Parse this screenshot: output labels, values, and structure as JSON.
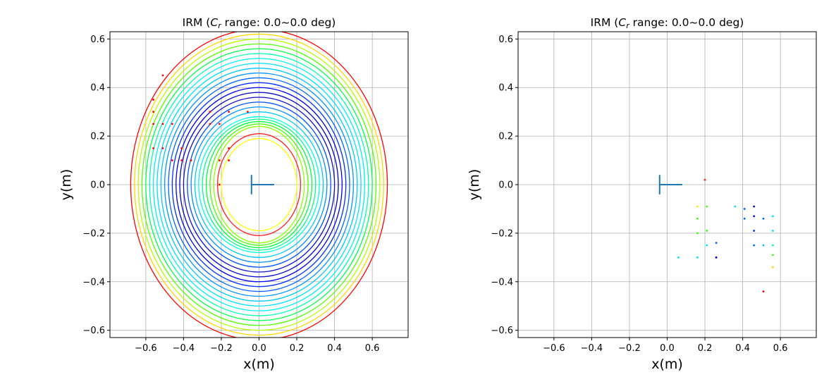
{
  "chart_data": [
    {
      "type": "scatter",
      "title": "IRM (C_r range: 0.0~0.0 deg)",
      "title_parts": {
        "prefix": "IRM (",
        "symbol": "C",
        "subscript": "r",
        "suffix": " range: 0.0~0.0 deg)"
      },
      "xlabel": "x(m)",
      "ylabel": "y(m)",
      "xlim": [
        -0.79,
        0.79
      ],
      "ylim": [
        -0.63,
        0.63
      ],
      "xticks": [
        -0.6,
        -0.4,
        -0.2,
        0.0,
        0.2,
        0.4,
        0.6
      ],
      "xtick_labels": [
        "−0.6",
        "−0.4",
        "−0.2",
        "0.0",
        "0.2",
        "0.4",
        "0.6"
      ],
      "yticks": [
        -0.6,
        -0.4,
        -0.2,
        0.0,
        0.2,
        0.4,
        0.6
      ],
      "ytick_labels": [
        "−0.6",
        "−0.4",
        "−0.2",
        "0.0",
        "0.2",
        "0.4",
        "0.6"
      ],
      "grid": true,
      "robot_marker": {
        "x": -0.04,
        "y": 0.0,
        "half_height": 0.04,
        "length": 0.12,
        "color": "#1f77b4"
      },
      "ellipses": [
        {
          "rx": 0.68,
          "ry": 0.64,
          "color": "#ff0000"
        },
        {
          "rx": 0.66,
          "ry": 0.62,
          "color": "#ffd700"
        },
        {
          "rx": 0.64,
          "ry": 0.6,
          "color": "#b4ff00"
        },
        {
          "rx": 0.62,
          "ry": 0.58,
          "color": "#55ff00"
        },
        {
          "rx": 0.6,
          "ry": 0.56,
          "color": "#00ff48"
        },
        {
          "rx": 0.58,
          "ry": 0.54,
          "color": "#00ffb0"
        },
        {
          "rx": 0.56,
          "ry": 0.52,
          "color": "#00f0ff"
        },
        {
          "rx": 0.54,
          "ry": 0.5,
          "color": "#00e0ff"
        },
        {
          "rx": 0.52,
          "ry": 0.48,
          "color": "#00c8ff"
        },
        {
          "rx": 0.5,
          "ry": 0.46,
          "color": "#0096ff"
        },
        {
          "rx": 0.48,
          "ry": 0.44,
          "color": "#0064ff"
        },
        {
          "rx": 0.46,
          "ry": 0.42,
          "color": "#0032ff"
        },
        {
          "rx": 0.44,
          "ry": 0.4,
          "color": "#0000f0"
        },
        {
          "rx": 0.42,
          "ry": 0.38,
          "color": "#0000c8"
        },
        {
          "rx": 0.4,
          "ry": 0.36,
          "color": "#1010d0"
        },
        {
          "rx": 0.38,
          "ry": 0.34,
          "color": "#0050ff"
        },
        {
          "rx": 0.36,
          "ry": 0.32,
          "color": "#0090ff"
        },
        {
          "rx": 0.34,
          "ry": 0.3,
          "color": "#00c8ff"
        },
        {
          "rx": 0.32,
          "ry": 0.28,
          "color": "#00ffe0"
        },
        {
          "rx": 0.3,
          "ry": 0.27,
          "color": "#00ff90"
        },
        {
          "rx": 0.28,
          "ry": 0.26,
          "color": "#00ff40"
        },
        {
          "rx": 0.26,
          "ry": 0.25,
          "color": "#40ff00"
        },
        {
          "rx": 0.24,
          "ry": 0.24,
          "color": "#90ff00"
        },
        {
          "rx": 0.22,
          "ry": 0.21,
          "color": "#ff2020"
        },
        {
          "rx": 0.2,
          "ry": 0.19,
          "color": "#ffff00"
        }
      ],
      "points": [
        {
          "x": -0.51,
          "y": 0.45,
          "color": "#ff0000"
        },
        {
          "x": -0.56,
          "y": 0.35,
          "color": "#ff0000"
        },
        {
          "x": -0.56,
          "y": 0.3,
          "color": "#ff0000"
        },
        {
          "x": -0.56,
          "y": 0.25,
          "color": "#ff0000"
        },
        {
          "x": -0.51,
          "y": 0.25,
          "color": "#ff0000"
        },
        {
          "x": -0.46,
          "y": 0.25,
          "color": "#ff0000"
        },
        {
          "x": -0.56,
          "y": 0.15,
          "color": "#ff0000"
        },
        {
          "x": -0.51,
          "y": 0.15,
          "color": "#ff0000"
        },
        {
          "x": -0.41,
          "y": 0.15,
          "color": "#ff0000"
        },
        {
          "x": -0.46,
          "y": 0.1,
          "color": "#ff0000"
        },
        {
          "x": -0.41,
          "y": 0.1,
          "color": "#ff0000"
        },
        {
          "x": -0.36,
          "y": 0.1,
          "color": "#ff0000"
        },
        {
          "x": -0.26,
          "y": 0.3,
          "color": "#ff0000"
        },
        {
          "x": -0.16,
          "y": 0.3,
          "color": "#ff0000"
        },
        {
          "x": -0.06,
          "y": 0.3,
          "color": "#ff0000"
        },
        {
          "x": -0.26,
          "y": 0.25,
          "color": "#ff0000"
        },
        {
          "x": -0.21,
          "y": 0.25,
          "color": "#ff0000"
        },
        {
          "x": -0.16,
          "y": 0.15,
          "color": "#ff0000"
        },
        {
          "x": -0.21,
          "y": 0.1,
          "color": "#ff0000"
        },
        {
          "x": -0.16,
          "y": 0.1,
          "color": "#ff0000"
        },
        {
          "x": -0.21,
          "y": 0.0,
          "color": "#ff0000"
        }
      ]
    },
    {
      "type": "scatter",
      "title": "IRM (C_r range: 0.0~0.0 deg)",
      "title_parts": {
        "prefix": "IRM (",
        "symbol": "C",
        "subscript": "r",
        "suffix": " range: 0.0~0.0 deg)"
      },
      "xlabel": "x(m)",
      "ylabel": "y(m)",
      "xlim": [
        -0.79,
        0.79
      ],
      "ylim": [
        -0.63,
        0.63
      ],
      "xticks": [
        -0.6,
        -0.4,
        -0.2,
        0.0,
        0.2,
        0.4,
        0.6
      ],
      "xtick_labels": [
        "−0.6",
        "−0.4",
        "−0.2",
        "0.0",
        "0.2",
        "0.4",
        "0.6"
      ],
      "yticks": [
        -0.6,
        -0.4,
        -0.2,
        0.0,
        0.2,
        0.4,
        0.6
      ],
      "ytick_labels": [
        "−0.6",
        "−0.4",
        "−0.2",
        "0.0",
        "0.2",
        "0.4",
        "0.6"
      ],
      "grid": true,
      "robot_marker": {
        "x": -0.04,
        "y": 0.0,
        "half_height": 0.04,
        "length": 0.12,
        "color": "#1f77b4"
      },
      "ellipses": [],
      "points": [
        {
          "x": 0.2,
          "y": 0.02,
          "color": "#ff2020"
        },
        {
          "x": 0.16,
          "y": -0.09,
          "color": "#ffee00"
        },
        {
          "x": 0.21,
          "y": -0.09,
          "color": "#40ff00"
        },
        {
          "x": 0.36,
          "y": -0.09,
          "color": "#00e0ff"
        },
        {
          "x": 0.46,
          "y": -0.09,
          "color": "#0000c8"
        },
        {
          "x": 0.41,
          "y": -0.1,
          "color": "#0064ff"
        },
        {
          "x": 0.16,
          "y": -0.14,
          "color": "#40ff00"
        },
        {
          "x": 0.41,
          "y": -0.14,
          "color": "#0064ff"
        },
        {
          "x": 0.46,
          "y": -0.13,
          "color": "#0000f0"
        },
        {
          "x": 0.51,
          "y": -0.14,
          "color": "#0064ff"
        },
        {
          "x": 0.56,
          "y": -0.13,
          "color": "#00e0ff"
        },
        {
          "x": 0.16,
          "y": -0.2,
          "color": "#40ff00"
        },
        {
          "x": 0.21,
          "y": -0.19,
          "color": "#40ff00"
        },
        {
          "x": 0.46,
          "y": -0.19,
          "color": "#0032ff"
        },
        {
          "x": 0.56,
          "y": -0.19,
          "color": "#00e0ff"
        },
        {
          "x": 0.21,
          "y": -0.25,
          "color": "#00e0ff"
        },
        {
          "x": 0.26,
          "y": -0.24,
          "color": "#0064ff"
        },
        {
          "x": 0.46,
          "y": -0.25,
          "color": "#0064ff"
        },
        {
          "x": 0.51,
          "y": -0.25,
          "color": "#00c8ff"
        },
        {
          "x": 0.56,
          "y": -0.25,
          "color": "#00ffb0"
        },
        {
          "x": 0.56,
          "y": -0.29,
          "color": "#40ff00"
        },
        {
          "x": 0.06,
          "y": -0.3,
          "color": "#00e0ff"
        },
        {
          "x": 0.16,
          "y": -0.3,
          "color": "#00e0ff"
        },
        {
          "x": 0.26,
          "y": -0.3,
          "color": "#0000c8"
        },
        {
          "x": 0.56,
          "y": -0.34,
          "color": "#ffd700"
        },
        {
          "x": 0.51,
          "y": -0.44,
          "color": "#ff0000"
        }
      ]
    }
  ]
}
